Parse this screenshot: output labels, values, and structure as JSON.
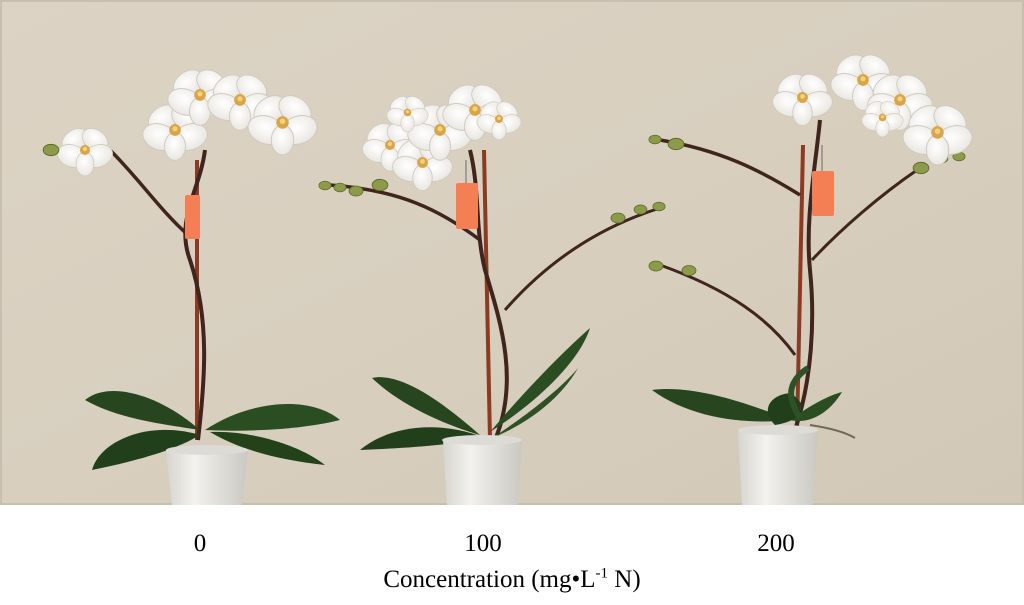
{
  "photo": {
    "subject": "three potted white phalaenopsis orchids",
    "colors": {
      "wall": "#d9d0c0",
      "leaf": "#27461f",
      "stem": "#4a2a22",
      "stake": "#8c3a22",
      "pot": "#ecebe6",
      "petal": "#fbfaf6",
      "lip": "#d9a54a",
      "tag": "#f47f55"
    }
  },
  "labels": [
    "0",
    "100",
    "200"
  ],
  "axis": {
    "pre": "Concentration (mg•L",
    "sup": "-1",
    "post": " N)"
  }
}
